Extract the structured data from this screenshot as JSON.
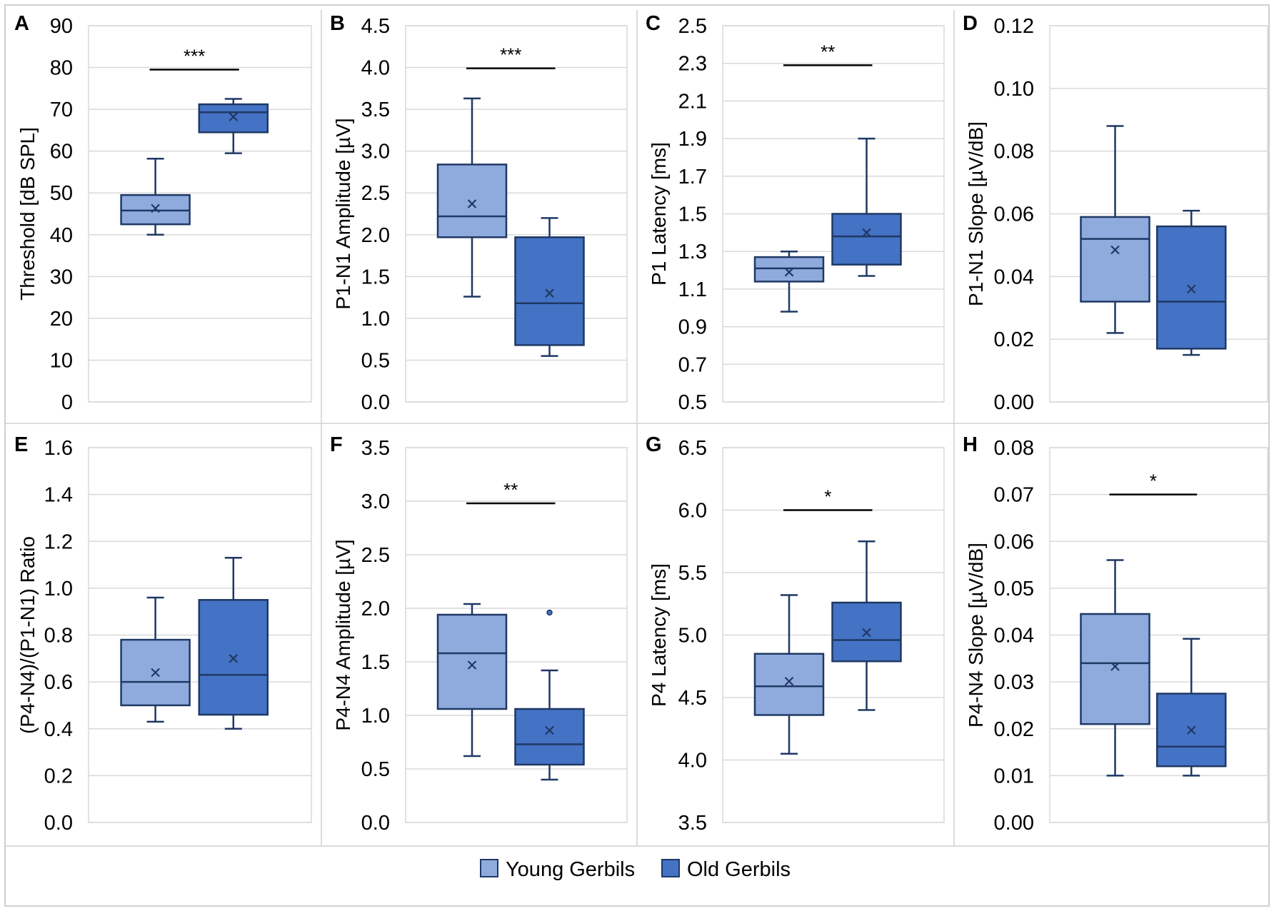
{
  "groups": [
    {
      "name": "Young Gerbils",
      "fill": "#8fabde",
      "stroke": "#1f3864"
    },
    {
      "name": "Old Gerbils",
      "fill": "#4472c4",
      "stroke": "#1f3864"
    }
  ],
  "legend": {
    "items": [
      "Young Gerbils",
      "Old Gerbils"
    ]
  },
  "chart_data": [
    {
      "type": "box",
      "panel": "A",
      "ylabel": "Threshold [dB SPL]",
      "ylim": [
        0,
        90
      ],
      "yticks": [
        0,
        10,
        20,
        30,
        40,
        50,
        60,
        70,
        80,
        90
      ],
      "decimals": 0,
      "boxes": [
        {
          "group": "Young Gerbils",
          "min": 40,
          "q1": 42.5,
          "median": 45.8,
          "q3": 49.5,
          "max": 58.2,
          "mean": 46.3,
          "outliers": []
        },
        {
          "group": "Old Gerbils",
          "min": 59.5,
          "q1": 64.5,
          "median": 69.3,
          "q3": 71.2,
          "max": 72.5,
          "mean": 68.2,
          "outliers": []
        }
      ],
      "significance": {
        "label": "***",
        "y": 79.5
      }
    },
    {
      "type": "box",
      "panel": "B",
      "ylabel": "P1-N1 Amplitude [µV]",
      "ylim": [
        0,
        4.5
      ],
      "yticks": [
        0,
        0.5,
        1,
        1.5,
        2,
        2.5,
        3,
        3.5,
        4,
        4.5
      ],
      "decimals": 1,
      "boxes": [
        {
          "group": "Young Gerbils",
          "min": 1.26,
          "q1": 1.97,
          "median": 2.22,
          "q3": 2.84,
          "max": 3.63,
          "mean": 2.37,
          "outliers": []
        },
        {
          "group": "Old Gerbils",
          "min": 0.55,
          "q1": 0.68,
          "median": 1.18,
          "q3": 1.97,
          "max": 2.2,
          "mean": 1.3,
          "outliers": []
        }
      ],
      "significance": {
        "label": "***",
        "y": 3.99
      }
    },
    {
      "type": "box",
      "panel": "C",
      "ylabel": "P1 Latency [ms]",
      "ylim": [
        0.5,
        2.5
      ],
      "yticks": [
        0.5,
        0.7,
        0.9,
        1.1,
        1.3,
        1.5,
        1.7,
        1.9,
        2.1,
        2.3,
        2.5
      ],
      "decimals": 1,
      "boxes": [
        {
          "group": "Young Gerbils",
          "min": 0.98,
          "q1": 1.14,
          "median": 1.21,
          "q3": 1.27,
          "max": 1.3,
          "mean": 1.19,
          "outliers": []
        },
        {
          "group": "Old Gerbils",
          "min": 1.17,
          "q1": 1.23,
          "median": 1.38,
          "q3": 1.5,
          "max": 1.9,
          "mean": 1.4,
          "outliers": []
        }
      ],
      "significance": {
        "label": "**",
        "y": 2.29
      }
    },
    {
      "type": "box",
      "panel": "D",
      "ylabel": "P1-N1 Slope [µV/dB]",
      "ylim": [
        0,
        0.12
      ],
      "yticks": [
        0,
        0.02,
        0.04,
        0.06,
        0.08,
        0.1,
        0.12
      ],
      "decimals": 2,
      "boxes": [
        {
          "group": "Young Gerbils",
          "min": 0.022,
          "q1": 0.032,
          "median": 0.052,
          "q3": 0.059,
          "max": 0.088,
          "mean": 0.0485,
          "outliers": []
        },
        {
          "group": "Old Gerbils",
          "min": 0.015,
          "q1": 0.017,
          "median": 0.032,
          "q3": 0.056,
          "max": 0.061,
          "mean": 0.036,
          "outliers": []
        }
      ],
      "significance": null
    },
    {
      "type": "box",
      "panel": "E",
      "ylabel": "(P4-N4)/(P1-N1) Ratio",
      "ylim": [
        0,
        1.6
      ],
      "yticks": [
        0,
        0.2,
        0.4,
        0.6,
        0.8,
        1,
        1.2,
        1.4,
        1.6
      ],
      "decimals": 1,
      "boxes": [
        {
          "group": "Young Gerbils",
          "min": 0.43,
          "q1": 0.5,
          "median": 0.6,
          "q3": 0.78,
          "max": 0.96,
          "mean": 0.64,
          "outliers": []
        },
        {
          "group": "Old Gerbils",
          "min": 0.4,
          "q1": 0.46,
          "median": 0.63,
          "q3": 0.95,
          "max": 1.13,
          "mean": 0.7,
          "outliers": []
        }
      ],
      "significance": null
    },
    {
      "type": "box",
      "panel": "F",
      "ylabel": "P4-N4 Amplitude [µV]",
      "ylim": [
        0,
        3.5
      ],
      "yticks": [
        0,
        0.5,
        1,
        1.5,
        2,
        2.5,
        3,
        3.5
      ],
      "decimals": 1,
      "boxes": [
        {
          "group": "Young Gerbils",
          "min": 0.62,
          "q1": 1.06,
          "median": 1.58,
          "q3": 1.94,
          "max": 2.04,
          "mean": 1.47,
          "outliers": []
        },
        {
          "group": "Old Gerbils",
          "min": 0.4,
          "q1": 0.54,
          "median": 0.73,
          "q3": 1.06,
          "max": 1.42,
          "mean": 0.86,
          "outliers": [
            1.96
          ]
        }
      ],
      "significance": {
        "label": "**",
        "y": 2.98
      }
    },
    {
      "type": "box",
      "panel": "G",
      "ylabel": "P4 Latency [ms]",
      "ylim": [
        3.5,
        6.5
      ],
      "yticks": [
        3.5,
        4,
        4.5,
        5,
        5.5,
        6,
        6.5
      ],
      "decimals": 1,
      "boxes": [
        {
          "group": "Young Gerbils",
          "min": 4.05,
          "q1": 4.36,
          "median": 4.59,
          "q3": 4.85,
          "max": 5.32,
          "mean": 4.63,
          "outliers": []
        },
        {
          "group": "Old Gerbils",
          "min": 4.4,
          "q1": 4.79,
          "median": 4.96,
          "q3": 5.26,
          "max": 5.75,
          "mean": 5.02,
          "outliers": []
        }
      ],
      "significance": {
        "label": "*",
        "y": 6.0
      }
    },
    {
      "type": "box",
      "panel": "H",
      "ylabel": "P4-N4 Slope [µV/dB]",
      "ylim": [
        0,
        0.08
      ],
      "yticks": [
        0,
        0.01,
        0.02,
        0.03,
        0.04,
        0.05,
        0.06,
        0.07,
        0.08
      ],
      "decimals": 2,
      "boxes": [
        {
          "group": "Young Gerbils",
          "min": 0.01,
          "q1": 0.021,
          "median": 0.034,
          "q3": 0.0445,
          "max": 0.056,
          "mean": 0.0333,
          "outliers": []
        },
        {
          "group": "Old Gerbils",
          "min": 0.01,
          "q1": 0.012,
          "median": 0.0162,
          "q3": 0.0275,
          "max": 0.0392,
          "mean": 0.0197,
          "outliers": []
        }
      ],
      "significance": {
        "label": "*",
        "y": 0.07
      }
    }
  ]
}
